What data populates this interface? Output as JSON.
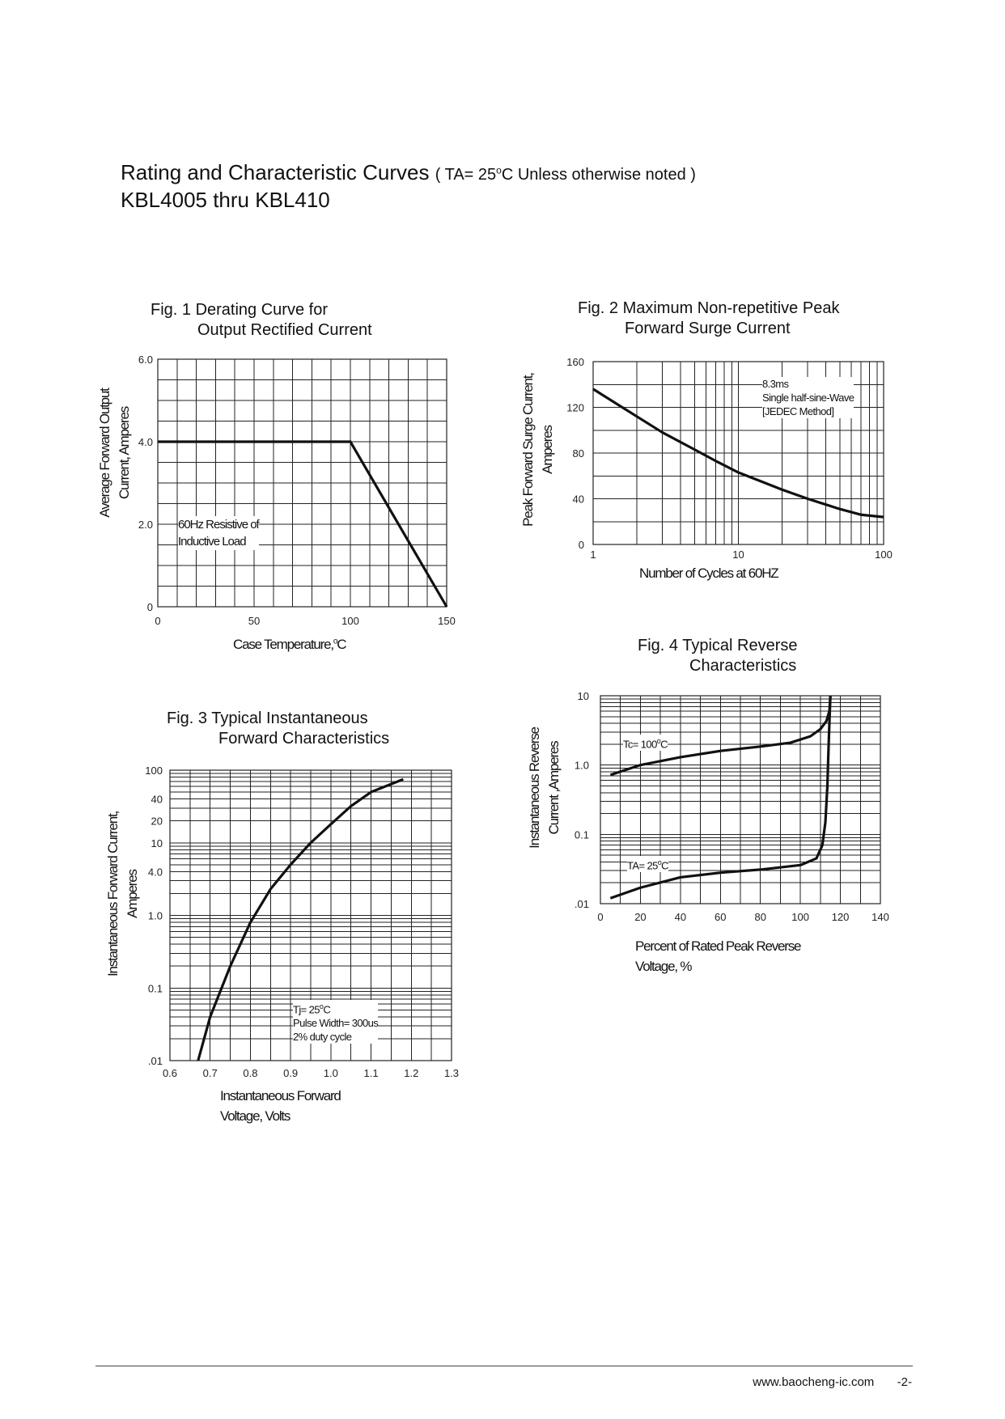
{
  "header": {
    "title": "Rating and Characteristic Curves",
    "subtitle_open": "( TA= 25",
    "subtitle_degree": "o",
    "subtitle_rest": "C Unless otherwise noted )",
    "part_range": "KBL4005  thru  KBL410"
  },
  "footer": {
    "website": "www.baocheng-ic.com",
    "page": "-2-"
  },
  "chart_data": [
    {
      "id": "fig1",
      "type": "line",
      "title_line1": "Fig. 1 Derating Curve for",
      "title_line2": "Output Rectified Current",
      "xlabel": "Case Temperature,",
      "xlabel_unit": "C",
      "degree_mark": "o",
      "ylabel_line1": "Average Forward Output",
      "ylabel_line2": "Current, Amperes",
      "xlim": [
        0,
        150
      ],
      "ylim": [
        0,
        6.0
      ],
      "x_ticks": [
        {
          "value": 0,
          "label": "0"
        },
        {
          "value": 50,
          "label": "50"
        },
        {
          "value": 100,
          "label": "100"
        },
        {
          "value": 150,
          "label": "150"
        }
      ],
      "y_ticks": [
        {
          "value": 0,
          "label": "0"
        },
        {
          "value": 2,
          "label": "2.0"
        },
        {
          "value": 4,
          "label": "4.0"
        },
        {
          "value": 6,
          "label": "6.0"
        }
      ],
      "annotation": [
        "60Hz Resistive of",
        "Inductive Load"
      ],
      "series": [
        {
          "name": "derating",
          "x": [
            0,
            100,
            150
          ],
          "y": [
            4.0,
            4.0,
            0
          ]
        }
      ]
    },
    {
      "id": "fig2",
      "type": "line",
      "title_line1": "Fig. 2 Maximum Non-repetitive Peak",
      "title_line2": "Forward Surge Current",
      "xlabel": "Number of Cycles at 60HZ",
      "ylabel_line1": "Peak Forward Surge Current,",
      "ylabel_line2": "Amperes",
      "xscale": "log",
      "xlim": [
        1,
        100
      ],
      "ylim": [
        0,
        160
      ],
      "x_ticks": [
        {
          "value": 1,
          "label": "1"
        },
        {
          "value": 10,
          "label": "10"
        },
        {
          "value": 100,
          "label": "100"
        }
      ],
      "y_ticks": [
        {
          "value": 0,
          "label": "0"
        },
        {
          "value": 40,
          "label": "40"
        },
        {
          "value": 80,
          "label": "80"
        },
        {
          "value": 120,
          "label": "120"
        },
        {
          "value": 160,
          "label": "160"
        }
      ],
      "annotation": [
        "8.3ms",
        "Single half-sine-Wave",
        "[JEDEC Method]"
      ],
      "series": [
        {
          "name": "surge",
          "x": [
            1,
            2,
            3,
            5,
            7,
            10,
            20,
            30,
            50,
            70,
            100
          ],
          "y": [
            136,
            112,
            98,
            83,
            73,
            63,
            48,
            40,
            31,
            26,
            24
          ]
        }
      ]
    },
    {
      "id": "fig3",
      "type": "line",
      "title_line1": "Fig. 3 Typical Instantaneous",
      "title_line2": "Forward Characteristics",
      "xlabel_line1": "Instantaneous Forward",
      "xlabel_line2": "Voltage, Volts",
      "ylabel_line1": "Instantaneous Forward Current,",
      "ylabel_line2": "Amperes",
      "yscale": "log",
      "xlim": [
        0.6,
        1.3
      ],
      "ylim": [
        0.01,
        100
      ],
      "x_ticks": [
        {
          "value": 0.6,
          "label": "0.6"
        },
        {
          "value": 0.7,
          "label": "0.7"
        },
        {
          "value": 0.8,
          "label": "0.8"
        },
        {
          "value": 0.9,
          "label": "0.9"
        },
        {
          "value": 1.0,
          "label": "1.0"
        },
        {
          "value": 1.1,
          "label": "1.1"
        },
        {
          "value": 1.2,
          "label": "1.2"
        },
        {
          "value": 1.3,
          "label": "1.3"
        }
      ],
      "y_ticks": [
        {
          "value": 0.01,
          "label": ".01"
        },
        {
          "value": 0.1,
          "label": "0.1"
        },
        {
          "value": 1,
          "label": "1.0"
        },
        {
          "value": 4,
          "label": "4.0"
        },
        {
          "value": 10,
          "label": "10"
        },
        {
          "value": 20,
          "label": "20"
        },
        {
          "value": 40,
          "label": "40"
        },
        {
          "value": 100,
          "label": "100"
        }
      ],
      "annotation": [
        "Tj= 25",
        "C",
        "Pulse Width= 300us",
        "2% duty cycle"
      ],
      "degree_mark": "o",
      "series": [
        {
          "name": "forward",
          "x": [
            0.67,
            0.7,
            0.75,
            0.8,
            0.85,
            0.9,
            0.95,
            1.0,
            1.05,
            1.1,
            1.18
          ],
          "y": [
            0.01,
            0.04,
            0.2,
            0.8,
            2.3,
            5.0,
            10,
            18,
            32,
            50,
            75
          ]
        }
      ]
    },
    {
      "id": "fig4",
      "type": "line",
      "title_line1": "Fig. 4 Typical Reverse",
      "title_line2": "Characteristics",
      "xlabel_line1": "Percent of Rated Peak Reverse",
      "xlabel_line2": "Voltage, %",
      "ylabel_line1": "Instantaneous Reverse",
      "ylabel_line2": "Current ,Amperes",
      "yscale": "log",
      "xlim": [
        0,
        140
      ],
      "ylim": [
        0.01,
        10
      ],
      "x_ticks": [
        {
          "value": 0,
          "label": "0"
        },
        {
          "value": 20,
          "label": "20"
        },
        {
          "value": 40,
          "label": "40"
        },
        {
          "value": 60,
          "label": "60"
        },
        {
          "value": 80,
          "label": "80"
        },
        {
          "value": 100,
          "label": "100"
        },
        {
          "value": 120,
          "label": "120"
        },
        {
          "value": 140,
          "label": "140"
        }
      ],
      "y_ticks": [
        {
          "value": 0.01,
          "label": ".01"
        },
        {
          "value": 0.1,
          "label": "0.1"
        },
        {
          "value": 1,
          "label": "1.0"
        },
        {
          "value": 10,
          "label": "10"
        }
      ],
      "series": [
        {
          "name": "Tc= 100 C",
          "label_prefix": "Tc= 100",
          "label_suffix": "C",
          "x": [
            5,
            20,
            40,
            60,
            80,
            95,
            105,
            110,
            113,
            114.5,
            115
          ],
          "y": [
            0.72,
            1.0,
            1.3,
            1.6,
            1.85,
            2.1,
            2.6,
            3.3,
            4.3,
            6.0,
            10
          ]
        },
        {
          "name": "TA= 25 C",
          "label_prefix": "TA= 25",
          "label_suffix": "C",
          "x": [
            5,
            20,
            40,
            60,
            80,
            100,
            108,
            111,
            112.5,
            113.5,
            114,
            114.5,
            115
          ],
          "y": [
            0.012,
            0.017,
            0.024,
            0.028,
            0.031,
            0.036,
            0.045,
            0.07,
            0.15,
            0.5,
            1.5,
            4.0,
            10
          ]
        }
      ],
      "degree_mark": "o"
    }
  ]
}
